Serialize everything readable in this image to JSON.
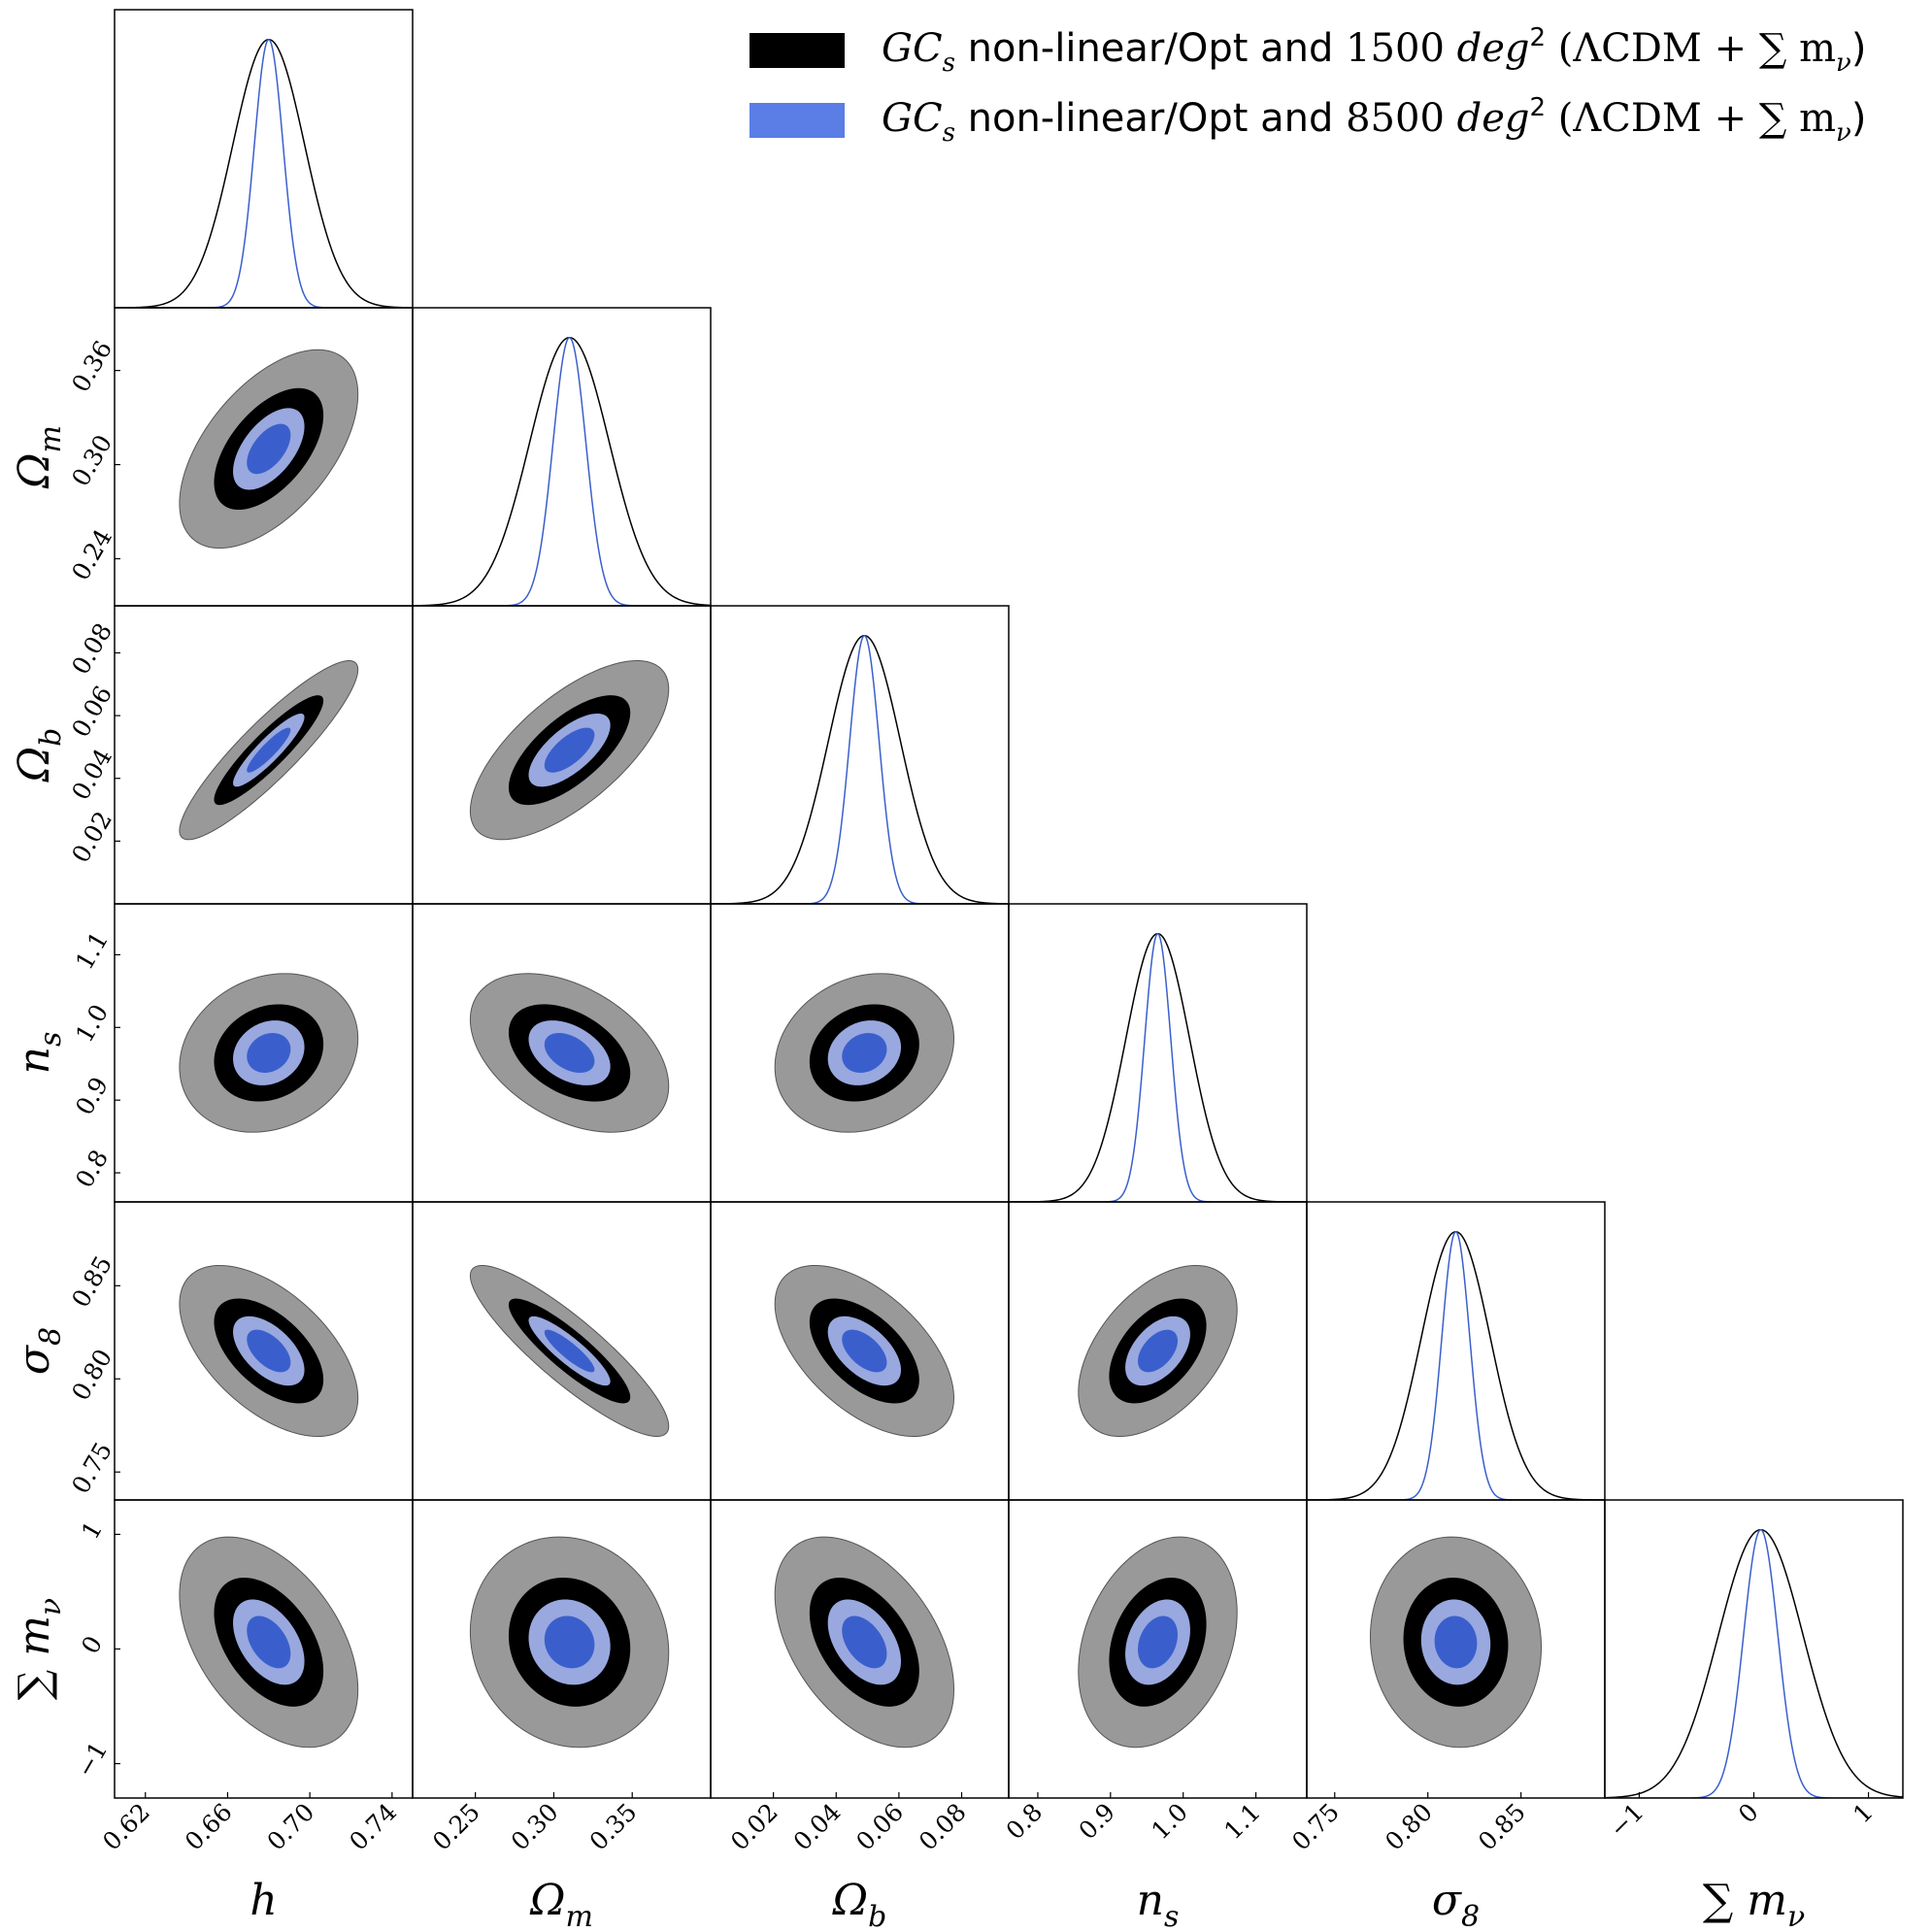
{
  "chart_data": {
    "type": "corner",
    "title": "",
    "params": [
      {
        "key": "h",
        "label": "h",
        "label_sub": "",
        "mean": 0.68,
        "range": [
          0.605,
          0.75
        ],
        "ticks": [
          "0.62",
          "0.66",
          "0.70",
          "0.74"
        ]
      },
      {
        "key": "Om",
        "label": "Ω",
        "label_sub": "m",
        "mean": 0.31,
        "range": [
          0.21,
          0.4
        ],
        "ticks": [
          "0.25",
          "0.30",
          "0.35"
        ],
        "yticks": [
          "0.24",
          "0.30",
          "0.36"
        ]
      },
      {
        "key": "Ob",
        "label": "Ω",
        "label_sub": "b",
        "mean": 0.049,
        "range": [
          0.0,
          0.095
        ],
        "ticks": [
          "0.02",
          "0.04",
          "0.06",
          "0.08"
        ]
      },
      {
        "key": "ns",
        "label": "n",
        "label_sub": "s",
        "mean": 0.965,
        "range": [
          0.76,
          1.17
        ],
        "ticks": [
          "0.8",
          "0.9",
          "1.0",
          "1.1"
        ],
        "yticks": [
          "0.8",
          "0.9",
          "1.0",
          "1.1"
        ]
      },
      {
        "key": "s8",
        "label": "σ",
        "label_sub": "8",
        "mean": 0.815,
        "range": [
          0.735,
          0.895
        ],
        "ticks": [
          "0.75",
          "0.80",
          "0.85"
        ],
        "yticks": [
          "0.75",
          "0.80",
          "0.85"
        ]
      },
      {
        "key": "mnu",
        "label": "∑ m",
        "label_sub": "ν",
        "mean": 0.06,
        "range": [
          -1.3,
          1.3
        ],
        "ticks": [
          "−1",
          "0",
          "1"
        ],
        "yticks": [
          "−1",
          "0",
          "1"
        ]
      }
    ],
    "series": [
      {
        "name": "GCs non-linear/Opt and 1500 deg2 (ΛCDM + ∑ mν)",
        "area_deg2": 1500,
        "color_1sigma": "#000000",
        "color_2sigma": "#999999",
        "line_color": "#000000",
        "sigma": {
          "h": 0.0175,
          "Om": 0.0255,
          "Ob": 0.0115,
          "ns": 0.044,
          "s8": 0.0185,
          "mnu": 0.37
        }
      },
      {
        "name": "GCs non-linear/Opt and 8500 deg2 (ΛCDM + ∑ mν)",
        "area_deg2": 8500,
        "color_1sigma": "#3a5fcd",
        "color_2sigma": "#99a8de",
        "line_color": "#3a5fcd",
        "sigma": {
          "h": 0.007,
          "Om": 0.0105,
          "Ob": 0.0047,
          "ns": 0.018,
          "s8": 0.0075,
          "mnu": 0.15
        }
      }
    ],
    "correlations": {
      "Om|h": 0.55,
      "Ob|h": 0.9,
      "Ob|Om": 0.68,
      "ns|h": 0.18,
      "ns|Om": -0.42,
      "ns|Ob": 0.18,
      "s8|h": -0.55,
      "s8|Om": -0.88,
      "s8|Ob": -0.55,
      "s8|ns": 0.48,
      "mnu|h": -0.45,
      "mnu|Om": -0.1,
      "mnu|Ob": -0.45,
      "mnu|ns": 0.28,
      "mnu|s8": -0.05
    }
  },
  "legend": {
    "items": [
      {
        "math_main": "GC",
        "math_sub": "s",
        "text": " non-linear/Opt and ",
        "number": "1500",
        "unit": "deg",
        "unit_sup": "2",
        "model_prefix": "(ΛCDM + ∑ m",
        "model_sub": "ν",
        "model_suffix": ")",
        "swatch": "#000000"
      },
      {
        "math_main": "GC",
        "math_sub": "s",
        "text": " non-linear/Opt and ",
        "number": "8500",
        "unit": "deg",
        "unit_sup": "2",
        "model_prefix": "(ΛCDM + ∑ m",
        "model_sub": "ν",
        "model_suffix": ")",
        "swatch": "#5a7de6"
      }
    ]
  }
}
